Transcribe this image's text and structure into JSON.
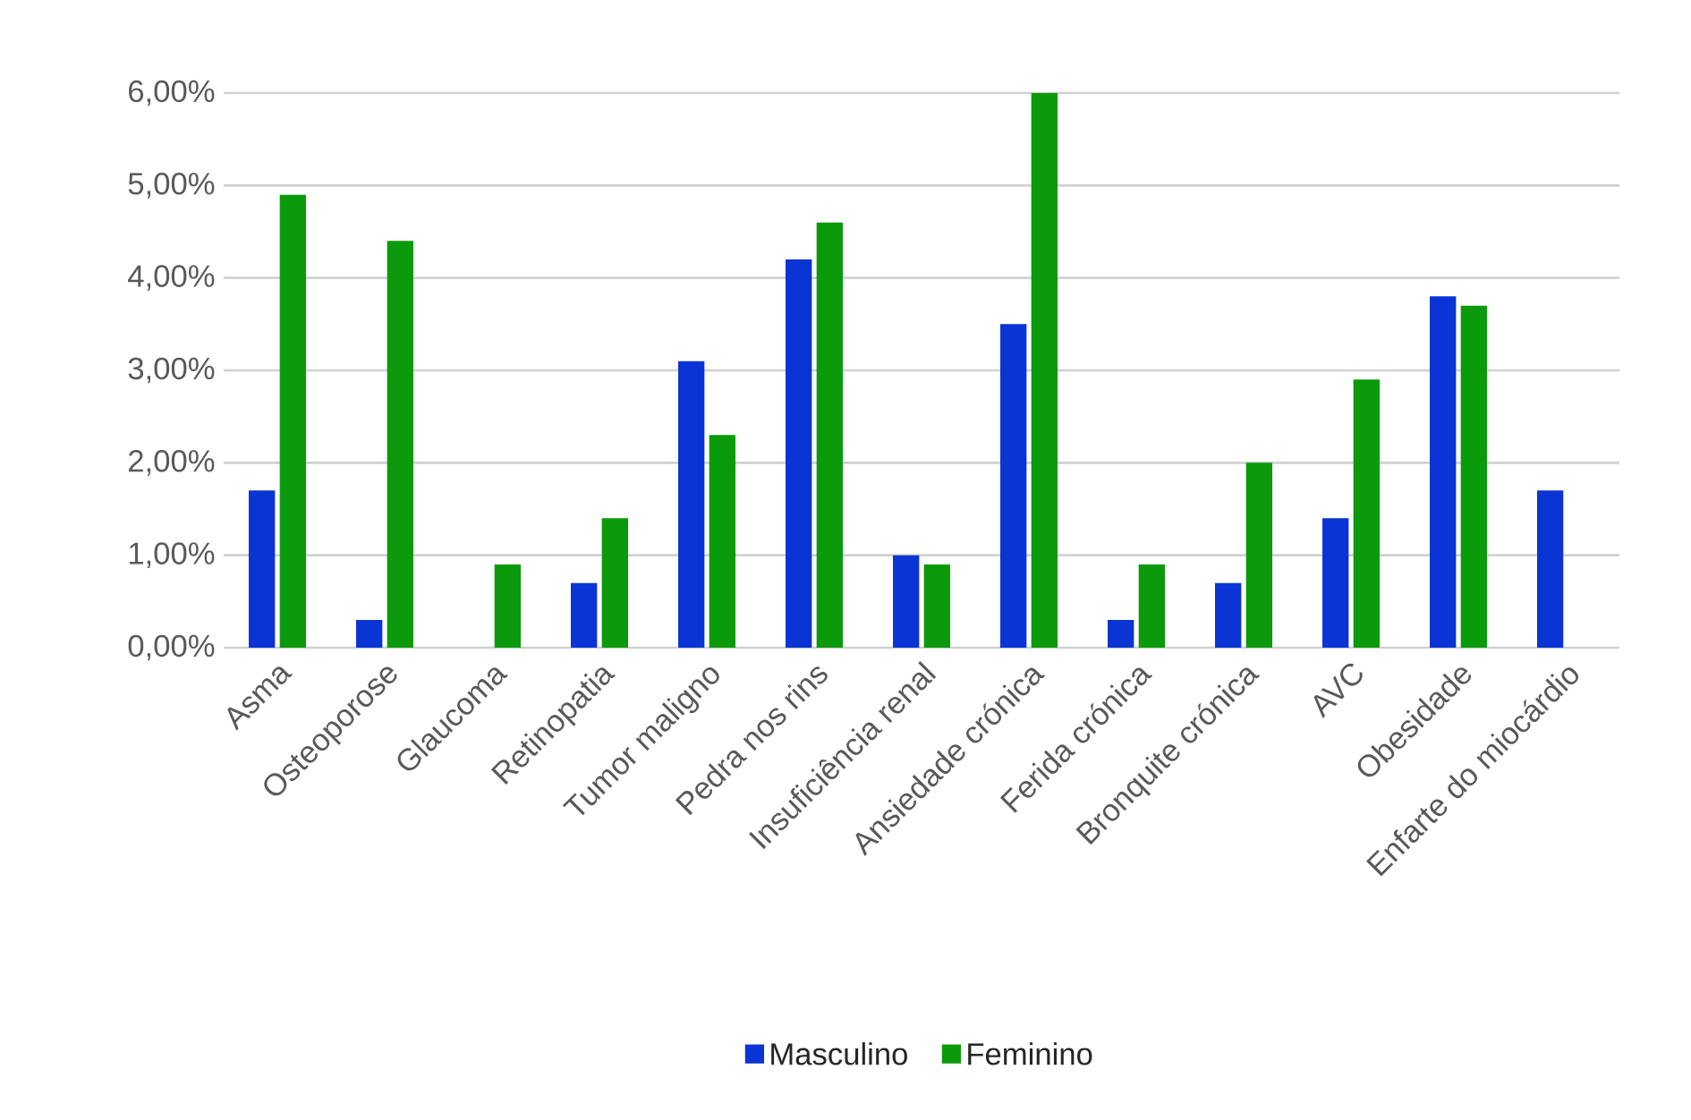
{
  "chart_data": {
    "type": "bar",
    "categories": [
      "Asma",
      "Osteoporose",
      "Glaucoma",
      "Retinopatia",
      "Tumor maligno",
      "Pedra nos rins",
      "Insuficiência renal",
      "Ansiedade crónica",
      "Ferida crónica",
      "Bronquite crónica",
      "AVC",
      "Obesidade",
      "Enfarte do miocárdio"
    ],
    "series": [
      {
        "name": "Masculino",
        "color": "#0a35d4",
        "values": [
          1.7,
          0.3,
          0.0,
          0.7,
          3.1,
          4.2,
          1.0,
          3.5,
          0.3,
          0.7,
          1.4,
          3.8,
          1.7
        ]
      },
      {
        "name": "Feminino",
        "color": "#0b9a0b",
        "values": [
          4.9,
          4.4,
          0.9,
          1.4,
          2.3,
          4.6,
          0.9,
          6.0,
          0.9,
          2.0,
          2.9,
          3.7,
          0.0
        ]
      }
    ],
    "ylim": [
      0,
      6
    ],
    "yticks": [
      {
        "value": 0,
        "label": "0,00%"
      },
      {
        "value": 1,
        "label": "1,00%"
      },
      {
        "value": 2,
        "label": "2,00%"
      },
      {
        "value": 3,
        "label": "3,00%"
      },
      {
        "value": 4,
        "label": "4,00%"
      },
      {
        "value": 5,
        "label": "5,00%"
      },
      {
        "value": 6,
        "label": "6,00%"
      }
    ],
    "grid": "y",
    "legend": "bottom"
  }
}
